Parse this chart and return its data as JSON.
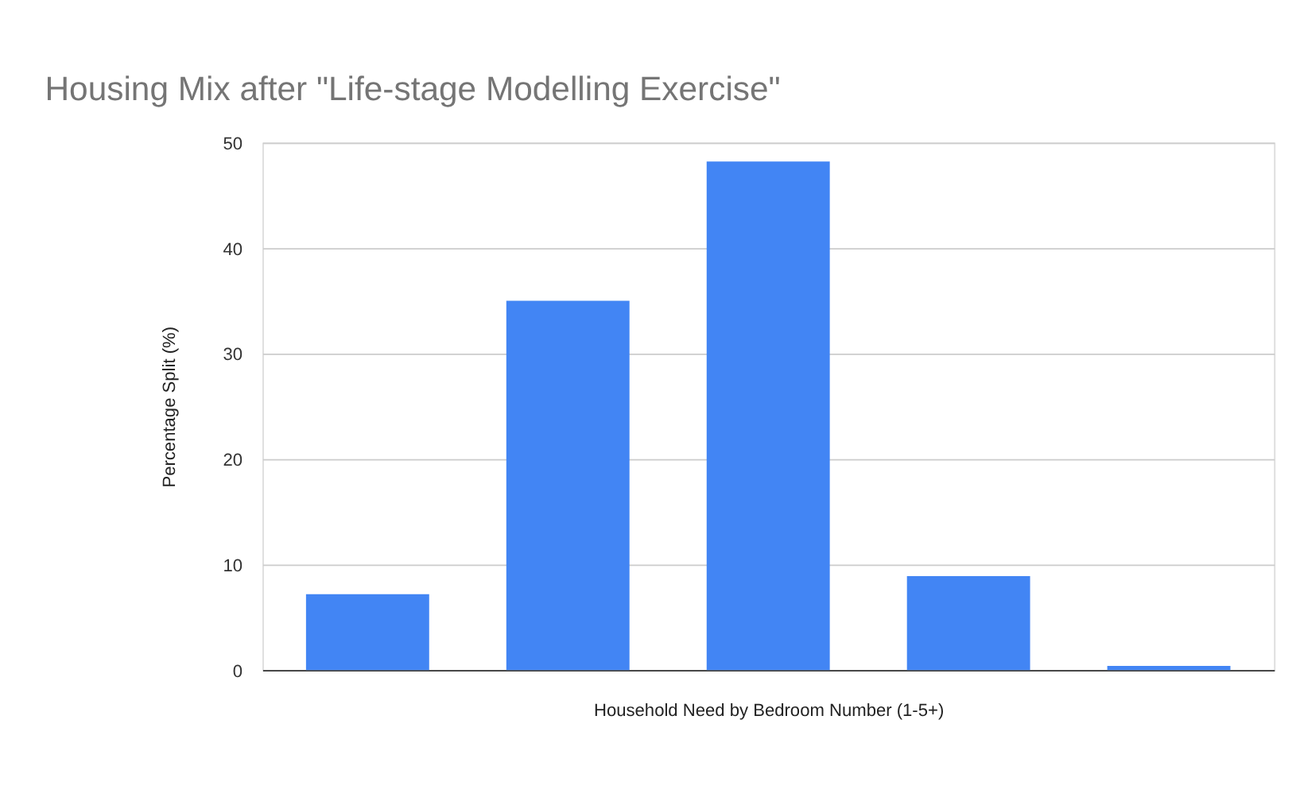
{
  "chart_data": {
    "type": "bar",
    "title": "Housing Mix after \"Life-stage Modelling Exercise\"",
    "xlabel": "Household Need by Bedroom Number (1-5+)",
    "ylabel": "Percentage Split (%)",
    "categories": [
      null,
      null,
      null,
      null,
      null
    ],
    "values": [
      7.2,
      35,
      48.2,
      8.9,
      0.4
    ],
    "color": "#4285f4",
    "ylim": [
      0,
      50
    ],
    "yticks": [
      0,
      10,
      20,
      30,
      40,
      50
    ],
    "grid": "y",
    "tick_labels": "y"
  }
}
